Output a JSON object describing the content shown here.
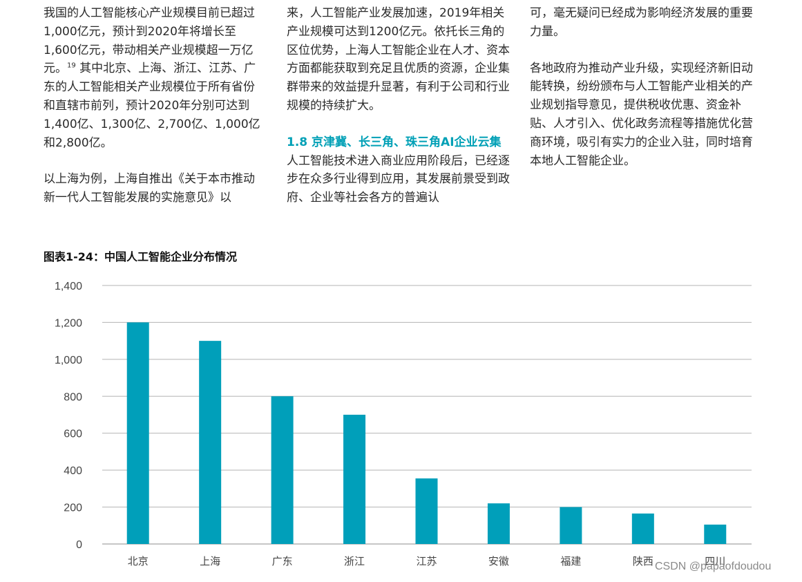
{
  "text": {
    "col1": {
      "p1_before": "我国的人工智能核心产业规模目前已超过1,000亿元，预计到2020年将增长至1,600亿元，带动相关产业规模超一万亿元。",
      "p1_footnote": "19",
      "p1_after": " 其中北京、上海、浙江、江苏、广东的人工智能相关产业规模位于所有省份和直辖市前列，预计2020年分别可达到1,400亿、1,300亿、2,700亿、1,000亿和2,800亿。",
      "p2": "以上海为例，上海自推出《关于本市推动新一代人工智能发展的实施意见》以"
    },
    "col2": {
      "p1": "来，人工智能产业发展加速，2019年相关产业规模可达到1200亿元。依托长三角的区位优势，上海人工智能企业在人才、资本方面都能获取到充足且优质的资源，企业集群带来的效益提升显著，有利于公司和行业规模的持续扩大。",
      "heading": "1.8 京津冀、长三角、珠三角AI企业云集",
      "p2": "人工智能技术进入商业应用阶段后，已经逐步在众多行业得到应用，其发展前景受到政府、企业等社会各方的普遍认"
    },
    "col3": {
      "p1": "可，毫无疑问已经成为影响经济发展的重要力量。",
      "p2": "各地政府为推动产业升级，实现经济新旧动能转换，纷纷颁布与人工智能产业相关的产业规划指导意见，提供税收优惠、资金补贴、人才引入、优化政务流程等措施优化营商环境，吸引有实力的企业入驻，同时培育本地人工智能企业。"
    }
  },
  "chart_data": {
    "type": "bar",
    "title": "图表1-24：中国人工智能企业分布情况",
    "categories": [
      "北京",
      "上海",
      "广东",
      "浙江",
      "江苏",
      "安徽",
      "福建",
      "陕西",
      "四川"
    ],
    "values": [
      1200,
      1100,
      800,
      700,
      355,
      220,
      200,
      165,
      105
    ],
    "ylim": [
      0,
      1400
    ],
    "yticks": [
      0,
      200,
      400,
      600,
      800,
      1000,
      1200,
      1400
    ],
    "ytick_labels": [
      "0",
      "200",
      "400",
      "600",
      "800",
      "1,000",
      "1,200",
      "1,400"
    ],
    "xlabel": "",
    "ylabel": "",
    "grid": true,
    "bar_color": "#009fba",
    "grid_color": "#b3b3b3"
  },
  "watermark": "CSDN @papaofdoudou",
  "colors": {
    "accent": "#00a0b6",
    "text": "#2a2a2a"
  }
}
